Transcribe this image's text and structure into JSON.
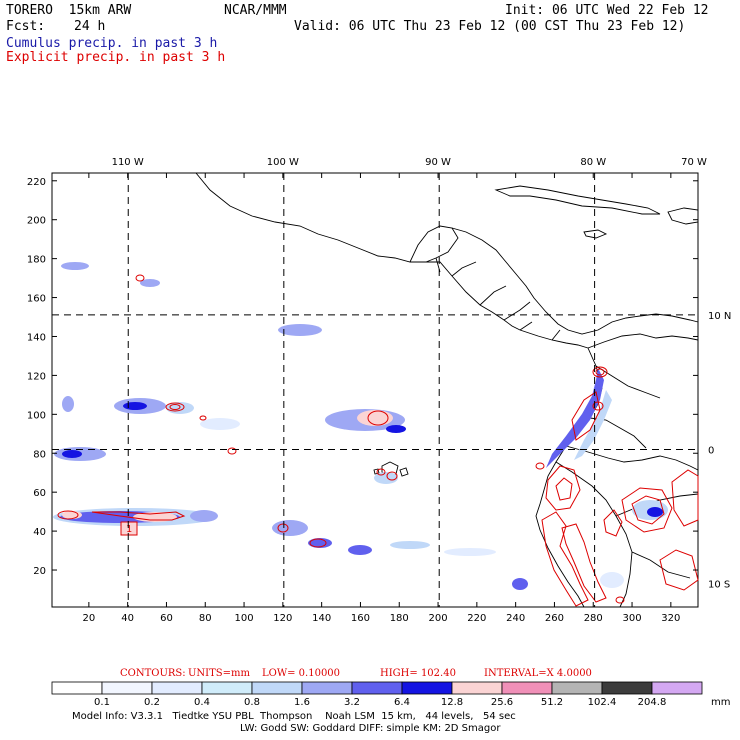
{
  "header": {
    "model": "TORERO  15km ARW",
    "org": "NCAR/MMM",
    "init": "Init: 06 UTC Wed 22 Feb 12",
    "fcst_label": "Fcst:",
    "fcst_value": "24 h",
    "valid": "Valid: 06 UTC Thu 23 Feb 12 (00 CST Thu 23 Feb 12)",
    "legend_cumulus": "Cumulus precip. in past 3 h",
    "legend_explicit": "Explicit precip. in past 3 h"
  },
  "chart_data": {
    "type": "heatmap",
    "title": "Cumulus precip. in past 3 h / Explicit precip. in past 3 h",
    "x_grid_ticks": [
      20,
      40,
      60,
      80,
      100,
      120,
      140,
      160,
      180,
      200,
      220,
      240,
      260,
      280,
      300,
      320
    ],
    "y_grid_ticks": [
      20,
      40,
      60,
      80,
      100,
      120,
      140,
      160,
      180,
      200,
      220
    ],
    "xlim": [
      1,
      334
    ],
    "ylim": [
      1,
      224
    ],
    "top_lon_labels": [
      "110 W",
      "100 W",
      "90 W",
      "80 W",
      "70 W"
    ],
    "top_lon_gridx": [
      40,
      120,
      200,
      280,
      360
    ],
    "right_lat_labels": [
      "10 N",
      "0",
      "10 S"
    ],
    "right_lat_gridy": [
      151,
      82,
      13
    ],
    "meridians_x": [
      40.3,
      120.5,
      200.6,
      280.7
    ],
    "parallels_y": [
      151.1,
      81.9
    ],
    "contour_info": {
      "contours_label": "CONTOURS:",
      "units": "UNITS=mm",
      "low": "LOW= 0.10000",
      "high": "HIGH=  102.40",
      "interval": "INTERVAL=X  4.0000"
    },
    "colorbar": {
      "levels": [
        "0.1",
        "0.2",
        "0.4",
        "0.8",
        "1.6",
        "3.2",
        "6.4",
        "12.8",
        "25.6",
        "51.2",
        "102.4",
        "204.8"
      ],
      "colors": [
        "#ffffff",
        "#f2f6ff",
        "#e2ecff",
        "#d0ecfa",
        "#c0d8f8",
        "#9ea8f4",
        "#6060ee",
        "#1414e2",
        "#fbd4d4",
        "#f090b8",
        "#b4b4b4",
        "#3c3c3c",
        "#d4a8f2"
      ],
      "unit": "mm"
    },
    "labeled_maxima": [
      {
        "value": "1",
        "x": 43,
        "y": 42
      }
    ]
  },
  "footer": {
    "line1": "Model Info: V3.3.1   Tiedtke YSU PBL  Thompson    Noah LSM  15 km,   44 levels,   54 sec",
    "line2": "LW: Godd SW: Goddard DIFF: simple KM: 2D Smagor"
  }
}
